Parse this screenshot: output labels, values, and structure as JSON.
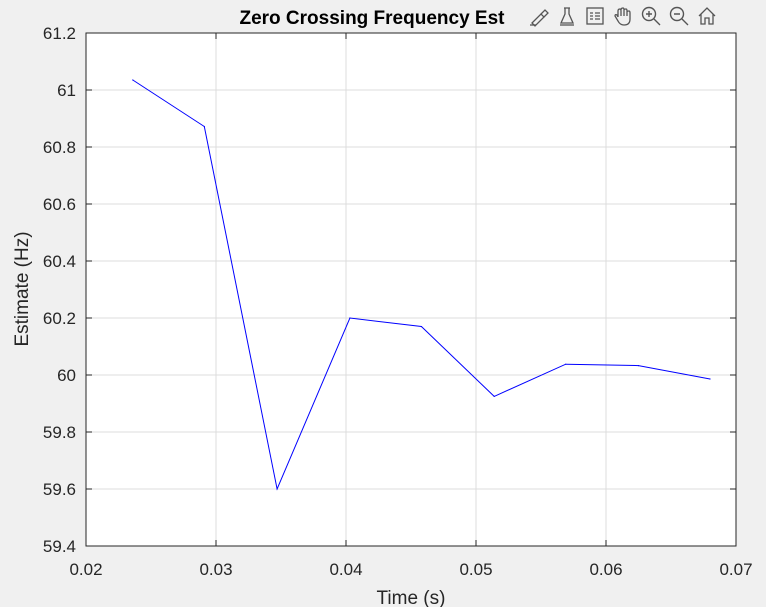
{
  "chart_data": {
    "type": "line",
    "title": "Zero Crossing Frequency Est",
    "xlabel": "Time (s)",
    "ylabel": "Estimate (Hz)",
    "xlim": [
      0.02,
      0.07
    ],
    "ylim": [
      59.4,
      61.2
    ],
    "xticks": [
      0.02,
      0.03,
      0.04,
      0.05,
      0.06,
      0.07
    ],
    "xtick_labels": [
      "0.02",
      "0.03",
      "0.04",
      "0.05",
      "0.06",
      "0.07"
    ],
    "yticks": [
      59.4,
      59.6,
      59.8,
      60,
      60.2,
      60.4,
      60.6,
      60.8,
      61,
      61.2
    ],
    "ytick_labels": [
      "59.4",
      "59.6",
      "59.8",
      "60",
      "60.2",
      "60.4",
      "60.6",
      "60.8",
      "61",
      "61.2"
    ],
    "grid": true,
    "series": [
      {
        "color": "#0000ff",
        "x": [
          0.0236,
          0.0291,
          0.0347,
          0.0403,
          0.0458,
          0.0514,
          0.0569,
          0.0625,
          0.068
        ],
        "y": [
          61.035,
          60.872,
          59.6,
          60.2,
          60.17,
          59.925,
          60.038,
          60.033,
          59.986
        ]
      }
    ]
  },
  "toolbar": {
    "icons": [
      "brush-icon",
      "data-tips-icon",
      "legend-icon",
      "pan-hand-icon",
      "zoom-in-icon",
      "zoom-out-icon",
      "home-icon"
    ]
  }
}
